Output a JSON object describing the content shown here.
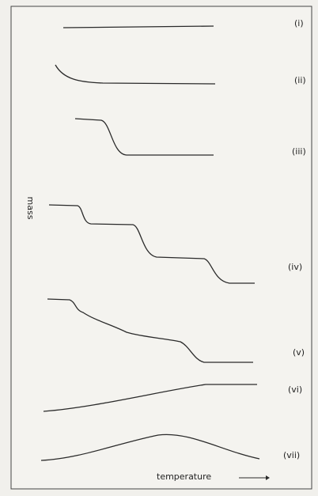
{
  "curves": [
    {
      "label": "(i)"
    },
    {
      "label": "(ii)"
    },
    {
      "label": "(iii)"
    },
    {
      "label": "(iv)"
    },
    {
      "label": "(v)"
    },
    {
      "label": "(vi)"
    },
    {
      "label": "(vii)"
    }
  ],
  "axes": {
    "y_label": "mass",
    "x_label": "temperature"
  }
}
